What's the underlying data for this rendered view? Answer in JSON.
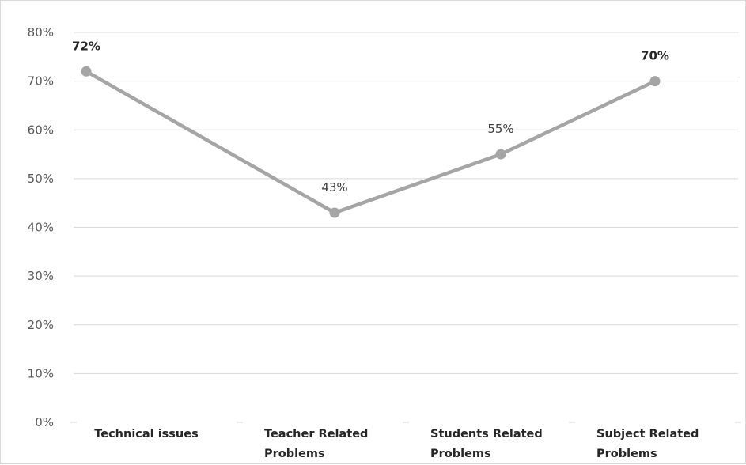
{
  "chart_data": {
    "type": "line",
    "title": "",
    "xlabel": "",
    "ylabel": "",
    "categories": [
      [
        "Technical issues"
      ],
      [
        "Teacher Related",
        "Problems"
      ],
      [
        "Students Related",
        "Problems"
      ],
      [
        "Subject Related",
        "Problems"
      ]
    ],
    "series": [
      {
        "values": [
          0.72,
          0.43,
          0.55,
          0.7
        ]
      }
    ],
    "data_labels": [
      "72%",
      "43%",
      "55%",
      "70%"
    ],
    "data_labels_bold": [
      true,
      false,
      false,
      true
    ],
    "ylim": [
      0,
      0.8
    ],
    "yticks": [
      0,
      0.1,
      0.2,
      0.3,
      0.4,
      0.5,
      0.6,
      0.7,
      0.8
    ],
    "ytick_labels": [
      "0%",
      "10%",
      "20%",
      "30%",
      "40%",
      "50%",
      "60%",
      "70%",
      "80%"
    ],
    "grid": true,
    "legend": "none",
    "colors": {
      "line": "#a5a5a5",
      "grid": "#d9d9d9",
      "tick_text": "#595959"
    }
  }
}
